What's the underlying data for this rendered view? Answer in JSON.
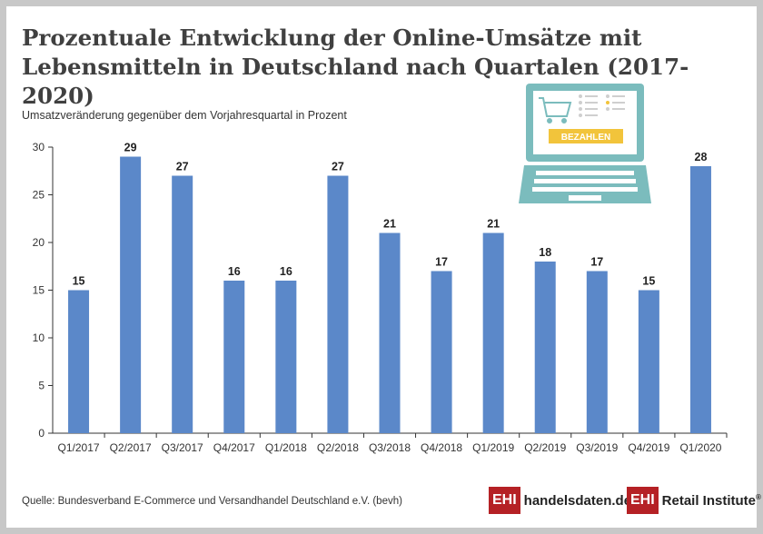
{
  "title": "Prozentuale Entwicklung der Online-Umsätze mit Lebensmitteln in Deutschland nach Quartalen (2017-2020)",
  "source": "Quelle: Bundesverband E-Commerce und Versandhandel Deutschland e.V. (bevh)",
  "illustration": {
    "pay_button": "BEZAHLEN",
    "colors": {
      "laptop": "#7bbcbd",
      "pay_button": "#f2c43b"
    },
    "icon": "laptop-shopping-cart-icon"
  },
  "logos": {
    "ehi_box": "EHI",
    "handelsdaten": "handelsdaten.de",
    "retail_institute": "Retail Institute",
    "registered": "®",
    "colors": {
      "box": "#b52125"
    }
  },
  "chart_data": {
    "type": "bar",
    "title": "Prozentuale Entwicklung der Online-Umsätze mit Lebensmitteln in Deutschland nach Quartalen (2017-2020)",
    "ylabel": "Umsatzveränderung gegenüber dem Vorjahresquartal in Prozent",
    "xlabel": "",
    "categories": [
      "Q1/2017",
      "Q2/2017",
      "Q3/2017",
      "Q4/2017",
      "Q1/2018",
      "Q2/2018",
      "Q3/2018",
      "Q4/2018",
      "Q1/2019",
      "Q2/2019",
      "Q3/2019",
      "Q4/2019",
      "Q1/2020"
    ],
    "values": [
      15,
      29,
      27,
      16,
      16,
      27,
      21,
      17,
      21,
      18,
      17,
      15,
      28
    ],
    "ylim": [
      0,
      30
    ],
    "yticks": [
      0,
      5,
      10,
      15,
      20,
      25,
      30
    ],
    "grid": false,
    "data_labels": true,
    "bar_color": "#5b88c9"
  }
}
